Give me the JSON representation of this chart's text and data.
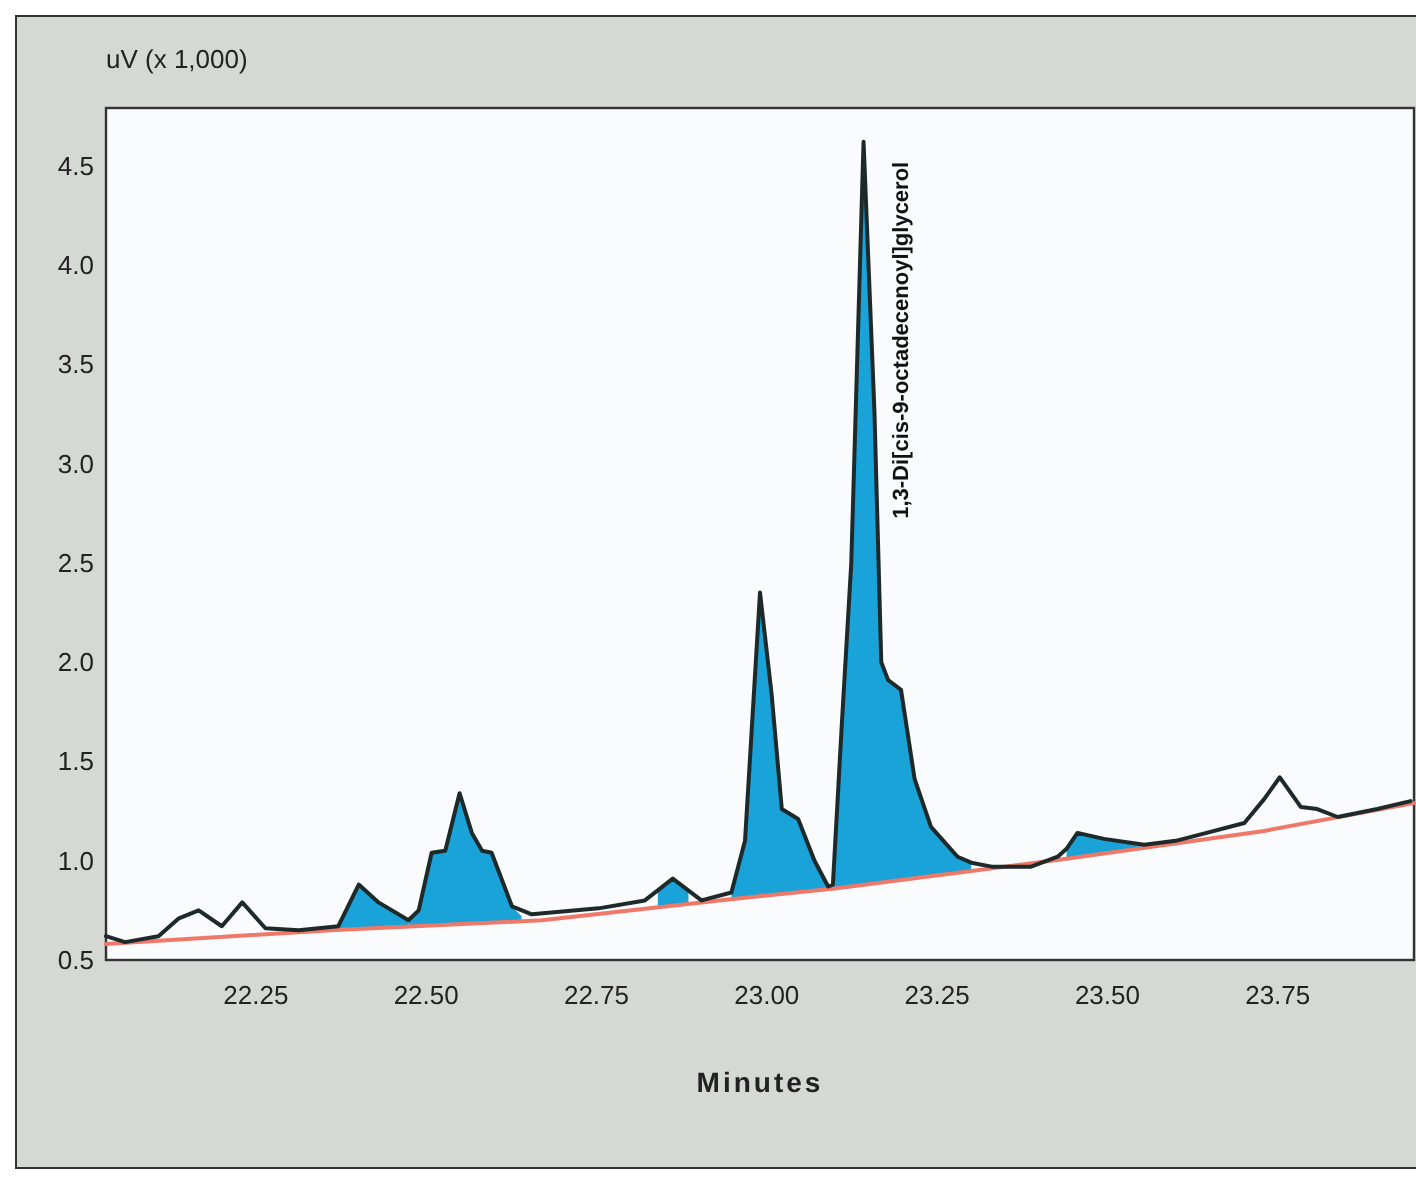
{
  "chart_data": {
    "type": "line",
    "ylabel": "uV (x 1,000)",
    "xlabel": "Minutes",
    "xlim": [
      22.03,
      23.95
    ],
    "ylim": [
      0.5,
      4.79
    ],
    "xticks": [
      {
        "value": 22.25,
        "label": "22.25"
      },
      {
        "value": 22.5,
        "label": "22.50"
      },
      {
        "value": 22.75,
        "label": "22.75"
      },
      {
        "value": 23,
        "label": "23.00"
      },
      {
        "value": 23.25,
        "label": "23.25"
      },
      {
        "value": 23.5,
        "label": "23.50"
      },
      {
        "value": 23.75,
        "label": "23.75"
      }
    ],
    "yticks": [
      {
        "value": 0.5,
        "label": "0.5"
      },
      {
        "value": 1,
        "label": "1.0"
      },
      {
        "value": 1.5,
        "label": "1.5"
      },
      {
        "value": 2,
        "label": "2.0"
      },
      {
        "value": 2.5,
        "label": "2.5"
      },
      {
        "value": 3,
        "label": "3.0"
      },
      {
        "value": 3.5,
        "label": "3.5"
      },
      {
        "value": 4,
        "label": "4.0"
      },
      {
        "value": 4.5,
        "label": "4.5"
      }
    ],
    "grid": false,
    "marker": "none",
    "line_style": "solid",
    "annotations": [
      {
        "text": "1,3-Di[cis-9-octadecenoyl]glycerol",
        "x": 23.142,
        "y": 4.62
      }
    ],
    "series": [
      {
        "type": "area",
        "color": "#1aa3d9",
        "x": [
          22.371,
          22.401,
          22.43,
          22.474
        ],
        "values": [
          0.67,
          0.88,
          0.79,
          0.7
        ]
      },
      {
        "type": "area",
        "color": "#1aa3d9",
        "x": [
          22.474,
          22.489,
          22.508,
          22.528,
          22.549,
          22.567,
          22.582,
          22.596,
          22.626,
          22.64
        ],
        "values": [
          0.7,
          0.75,
          1.04,
          1.05,
          1.34,
          1.14,
          1.05,
          1.04,
          0.77,
          0.72
        ]
      },
      {
        "type": "area",
        "color": "#1aa3d9",
        "x": [
          22.84,
          22.862,
          22.885
        ],
        "values": [
          0.84,
          0.91,
          0.85
        ]
      },
      {
        "type": "area",
        "color": "#1aa3d9",
        "x": [
          22.948,
          22.968,
          22.99,
          23.007,
          23.022,
          23.046,
          23.07,
          23.09,
          23.097
        ],
        "values": [
          0.84,
          1.1,
          2.35,
          1.84,
          1.26,
          1.21,
          1,
          0.87,
          0.88
        ]
      },
      {
        "type": "area",
        "color": "#1aa3d9",
        "x": [
          23.097,
          23.11,
          23.124,
          23.142,
          23.158,
          23.168,
          23.178,
          23.197,
          23.217,
          23.241,
          23.28,
          23.3
        ],
        "values": [
          0.88,
          1.68,
          2.5,
          4.62,
          3.26,
          2.0,
          1.91,
          1.86,
          1.41,
          1.17,
          1.02,
          0.99
        ]
      },
      {
        "type": "area",
        "color": "#1aa3d9",
        "x": [
          23.44,
          23.456,
          23.495,
          23.554,
          23.6
        ],
        "values": [
          1.06,
          1.14,
          1.11,
          1.08,
          1.1
        ]
      },
      {
        "color": "#f07868",
        "x": [
          22.03,
          22.36,
          22.67,
          22.93,
          23.1,
          23.44,
          23.73,
          23.95
        ],
        "values": [
          0.58,
          0.65,
          0.7,
          0.8,
          0.86,
          1.01,
          1.15,
          1.29
        ]
      },
      {
        "color": "#1e2a2a",
        "x": [
          22.03,
          22.058,
          22.107,
          22.137,
          22.166,
          22.2,
          22.23,
          22.264,
          22.313,
          22.371,
          22.401,
          22.43,
          22.474,
          22.489,
          22.508,
          22.528,
          22.549,
          22.567,
          22.582,
          22.596,
          22.626,
          22.655,
          22.753,
          22.821,
          22.862,
          22.904,
          22.948,
          22.968,
          22.99,
          23.007,
          23.022,
          23.046,
          23.07,
          23.09,
          23.097,
          23.11,
          23.124,
          23.142,
          23.158,
          23.168,
          23.178,
          23.197,
          23.217,
          23.241,
          23.28,
          23.3,
          23.33,
          23.388,
          23.427,
          23.44,
          23.456,
          23.495,
          23.554,
          23.6,
          23.623,
          23.701,
          23.73,
          23.753,
          23.784,
          23.808,
          23.838,
          23.896,
          23.945
        ],
        "values": [
          0.62,
          0.59,
          0.62,
          0.71,
          0.75,
          0.67,
          0.79,
          0.66,
          0.65,
          0.67,
          0.88,
          0.79,
          0.7,
          0.75,
          1.04,
          1.05,
          1.34,
          1.14,
          1.05,
          1.04,
          0.77,
          0.73,
          0.76,
          0.8,
          0.91,
          0.8,
          0.84,
          1.1,
          2.35,
          1.84,
          1.26,
          1.21,
          1,
          0.87,
          0.88,
          1.68,
          2.5,
          4.62,
          3.26,
          2.0,
          1.91,
          1.86,
          1.41,
          1.17,
          1.02,
          0.99,
          0.97,
          0.97,
          1.02,
          1.06,
          1.14,
          1.11,
          1.08,
          1.1,
          1.12,
          1.19,
          1.31,
          1.42,
          1.27,
          1.26,
          1.22,
          1.26,
          1.3
        ]
      }
    ]
  }
}
